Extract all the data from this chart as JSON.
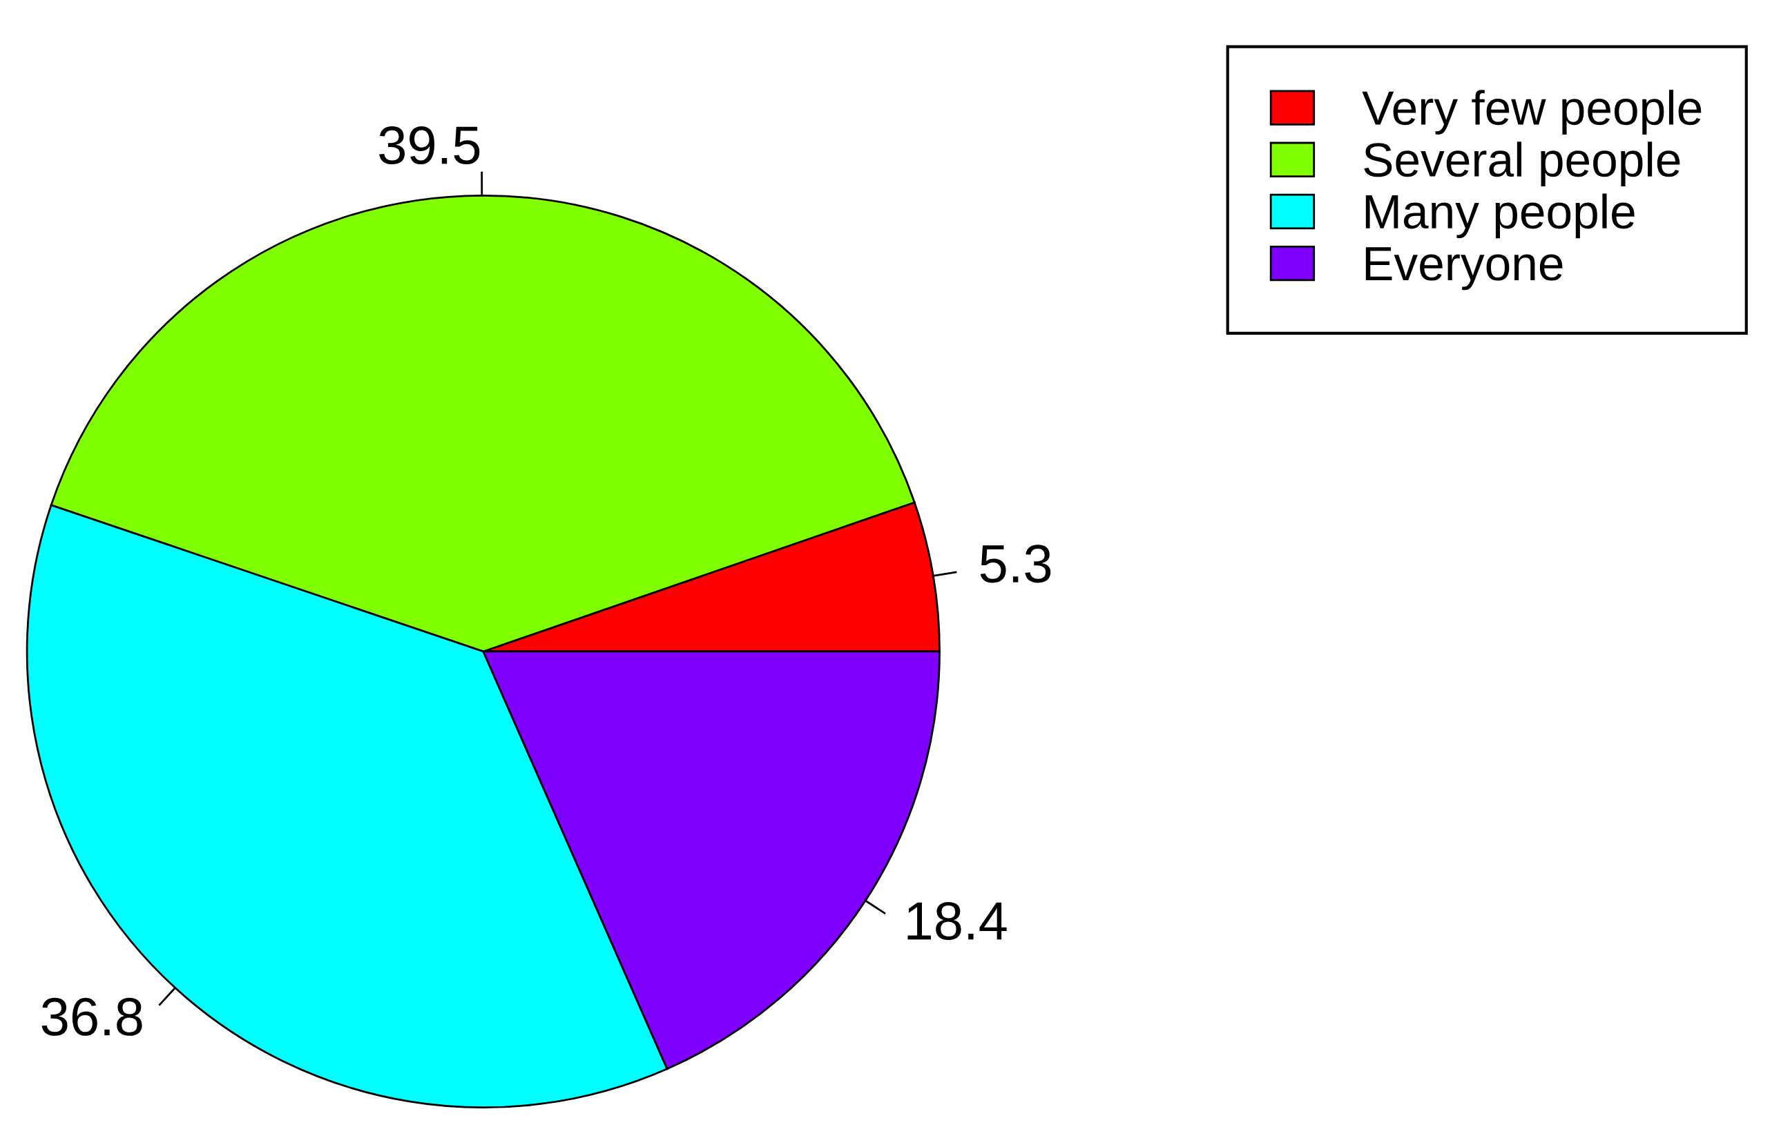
{
  "chart_data": {
    "type": "pie",
    "categories": [
      "Very few people",
      "Several people",
      "Many people",
      "Everyone"
    ],
    "values": [
      5.3,
      39.5,
      36.8,
      18.4
    ],
    "colors": [
      "#ff0000",
      "#80ff00",
      "#00ffff",
      "#8000ff"
    ],
    "data_labels": true,
    "legend": "top right"
  }
}
